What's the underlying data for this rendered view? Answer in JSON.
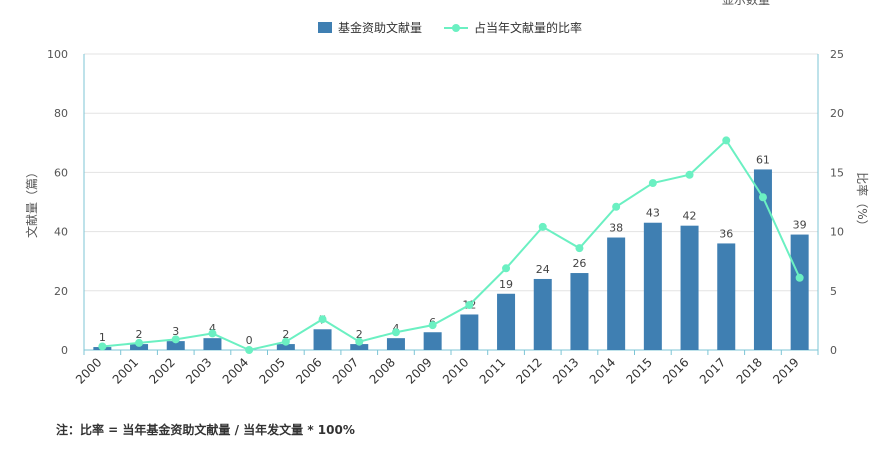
{
  "corner_text": "显示数量",
  "legend": {
    "bar_label": "基金资助文献量",
    "line_label": "占当年文献量的比率"
  },
  "note": "注：比率 = 当年基金资助文献量 / 当年发文量 * 100%",
  "colors": {
    "bar": "#3f7fb2",
    "line": "#6bf0c2",
    "grid": "#e3e3e3",
    "axis": "#7cc5d6",
    "text": "#555555"
  },
  "chart_data": {
    "type": "bar",
    "categories": [
      "2000",
      "2001",
      "2002",
      "2003",
      "2004",
      "2005",
      "2006",
      "2007",
      "2008",
      "2009",
      "2010",
      "2011",
      "2012",
      "2013",
      "2014",
      "2015",
      "2016",
      "2017",
      "2018",
      "2019"
    ],
    "series": [
      {
        "name": "基金资助文献量",
        "type": "bar",
        "axis": "left",
        "values": [
          1,
          2,
          3,
          4,
          0,
          2,
          7,
          2,
          4,
          6,
          12,
          19,
          24,
          26,
          38,
          43,
          42,
          36,
          61,
          39
        ]
      },
      {
        "name": "占当年文献量的比率",
        "type": "line",
        "axis": "right",
        "values": [
          0.3,
          0.6,
          0.9,
          1.4,
          0.0,
          0.7,
          2.6,
          0.7,
          1.5,
          2.1,
          3.8,
          6.9,
          10.4,
          8.6,
          12.1,
          14.1,
          14.8,
          17.7,
          12.9,
          6.1
        ]
      }
    ],
    "ylabel": "文献量（篇）",
    "y2label": "比率（%）",
    "ylim": [
      0,
      100
    ],
    "y2lim": [
      0,
      25
    ],
    "yticks": [
      0,
      20,
      40,
      60,
      80,
      100
    ],
    "y2ticks": [
      0,
      5,
      10,
      15,
      20,
      25
    ],
    "grid": true,
    "legend_position": "top-center"
  }
}
